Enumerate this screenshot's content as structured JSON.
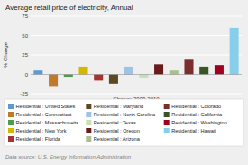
{
  "chart_data": {
    "type": "bar",
    "title": "Average retail price of electricity, Annual",
    "xlabel": "Change 2009-2010",
    "ylabel": "% Change",
    "categories": [
      "Residential : United States",
      "Residential : Connecticut",
      "Residential : Massachusetts",
      "Residential : New York",
      "Residential : Florida",
      "Residential : Maryland",
      "Residential : North Carolina",
      "Residential : Texas",
      "Residential : Oregon",
      "Residential : Arizona",
      "Residential : Colorado",
      "Residential : California",
      "Residential : Washington",
      "Residential : Hawaii"
    ],
    "values": [
      5,
      -15,
      -3,
      10,
      -8,
      -12,
      10,
      -5,
      13,
      5,
      20,
      10,
      12,
      60
    ],
    "colors": [
      "#5B9BD5",
      "#C07A2A",
      "#4E9A4E",
      "#D4B800",
      "#A83232",
      "#5C4A1E",
      "#9DC3E6",
      "#C5E0B4",
      "#6B1A1A",
      "#A9C08C",
      "#7B2E2E",
      "#375623",
      "#A00020",
      "#87CEEB"
    ],
    "ylim": [
      -25,
      75
    ],
    "yticks": [
      -25,
      0,
      25,
      50,
      75
    ],
    "grid": true,
    "legend": "bottom",
    "tick_labels": "y",
    "annotations": [
      "Data source: U.S. Energy Information Administration"
    ]
  }
}
